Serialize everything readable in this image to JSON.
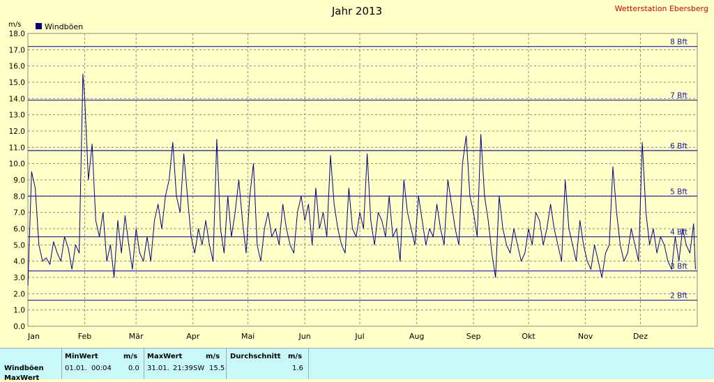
{
  "station": "Wetterstation Ebersberg",
  "chart_data": {
    "type": "line",
    "title": "Jahr 2013",
    "ylabel": "m/s",
    "ylim": [
      0,
      18
    ],
    "yticks": [
      "0.0",
      "1.0",
      "2.0",
      "3.0",
      "4.0",
      "5.0",
      "6.0",
      "7.0",
      "8.0",
      "9.0",
      "10.0",
      "11.0",
      "12.0",
      "13.0",
      "14.0",
      "15.0",
      "16.0",
      "17.0",
      "18.0"
    ],
    "grid": true,
    "legend": "top-left",
    "months": [
      "Jan",
      "Feb",
      "Mär",
      "Apr",
      "Mai",
      "Jun",
      "Jul",
      "Aug",
      "Sep",
      "Okt",
      "Nov",
      "Dez"
    ],
    "beaufort": [
      {
        "label": "2 Bft",
        "value": 1.6
      },
      {
        "label": "3 Bft",
        "value": 3.4
      },
      {
        "label": "4 Bft",
        "value": 5.5
      },
      {
        "label": "5 Bft",
        "value": 8.0
      },
      {
        "label": "6 Bft",
        "value": 10.8
      },
      {
        "label": "7 Bft",
        "value": 13.9
      },
      {
        "label": "8 Bft",
        "value": 17.2
      }
    ],
    "series": [
      {
        "name": "Windböen",
        "color": "#000080",
        "points": [
          [
            1,
            2.5
          ],
          [
            3,
            9.5
          ],
          [
            5,
            8.5
          ],
          [
            7,
            5
          ],
          [
            9,
            4
          ],
          [
            11,
            4.2
          ],
          [
            13,
            3.8
          ],
          [
            15,
            5.2
          ],
          [
            17,
            4.5
          ],
          [
            19,
            4
          ],
          [
            21,
            5.5
          ],
          [
            23,
            4.8
          ],
          [
            25,
            3.5
          ],
          [
            27,
            5
          ],
          [
            29,
            4.5
          ],
          [
            31,
            15.5
          ],
          [
            32,
            14
          ],
          [
            34,
            9
          ],
          [
            36,
            11.2
          ],
          [
            38,
            6.5
          ],
          [
            40,
            5.5
          ],
          [
            42,
            7
          ],
          [
            44,
            4
          ],
          [
            46,
            5
          ],
          [
            48,
            3
          ],
          [
            50,
            6.5
          ],
          [
            52,
            4.5
          ],
          [
            54,
            6.8
          ],
          [
            56,
            5
          ],
          [
            58,
            3.5
          ],
          [
            60,
            6
          ],
          [
            62,
            4.5
          ],
          [
            64,
            4
          ],
          [
            66,
            5.5
          ],
          [
            68,
            4
          ],
          [
            70,
            6.5
          ],
          [
            72,
            7.5
          ],
          [
            74,
            6
          ],
          [
            76,
            8
          ],
          [
            78,
            9
          ],
          [
            80,
            11.3
          ],
          [
            82,
            8
          ],
          [
            84,
            7
          ],
          [
            86,
            10.6
          ],
          [
            88,
            8
          ],
          [
            90,
            5.5
          ],
          [
            92,
            4.5
          ],
          [
            94,
            6
          ],
          [
            96,
            5
          ],
          [
            98,
            6.5
          ],
          [
            100,
            5
          ],
          [
            102,
            4
          ],
          [
            104,
            11.5
          ],
          [
            106,
            6
          ],
          [
            108,
            4.5
          ],
          [
            110,
            8
          ],
          [
            112,
            5.5
          ],
          [
            114,
            7
          ],
          [
            116,
            9
          ],
          [
            118,
            6.5
          ],
          [
            120,
            4.5
          ],
          [
            122,
            8
          ],
          [
            124,
            10
          ],
          [
            126,
            5
          ],
          [
            128,
            4
          ],
          [
            130,
            6
          ],
          [
            132,
            7
          ],
          [
            134,
            5.5
          ],
          [
            136,
            6
          ],
          [
            138,
            5
          ],
          [
            140,
            7.5
          ],
          [
            142,
            6
          ],
          [
            144,
            5
          ],
          [
            146,
            4.5
          ],
          [
            148,
            7
          ],
          [
            150,
            8
          ],
          [
            152,
            6.5
          ],
          [
            154,
            7.5
          ],
          [
            156,
            5
          ],
          [
            158,
            8.5
          ],
          [
            160,
            6
          ],
          [
            162,
            7
          ],
          [
            164,
            5.5
          ],
          [
            166,
            10.5
          ],
          [
            168,
            7.5
          ],
          [
            170,
            6
          ],
          [
            172,
            5
          ],
          [
            174,
            4.5
          ],
          [
            176,
            8.5
          ],
          [
            178,
            6
          ],
          [
            180,
            5.5
          ],
          [
            182,
            7
          ],
          [
            184,
            6
          ],
          [
            186,
            10.6
          ],
          [
            188,
            6.5
          ],
          [
            190,
            5
          ],
          [
            192,
            7
          ],
          [
            194,
            6.5
          ],
          [
            196,
            5.5
          ],
          [
            198,
            8
          ],
          [
            200,
            5.5
          ],
          [
            202,
            6
          ],
          [
            204,
            4
          ],
          [
            206,
            9
          ],
          [
            208,
            7
          ],
          [
            210,
            6
          ],
          [
            212,
            5
          ],
          [
            214,
            8
          ],
          [
            216,
            6.5
          ],
          [
            218,
            5
          ],
          [
            220,
            6
          ],
          [
            222,
            5.5
          ],
          [
            224,
            7.5
          ],
          [
            226,
            6
          ],
          [
            228,
            5
          ],
          [
            230,
            9
          ],
          [
            232,
            7.5
          ],
          [
            234,
            6
          ],
          [
            236,
            5
          ],
          [
            238,
            10
          ],
          [
            240,
            11.7
          ],
          [
            242,
            8
          ],
          [
            244,
            7
          ],
          [
            246,
            5.5
          ],
          [
            248,
            11.8
          ],
          [
            250,
            8
          ],
          [
            252,
            6.5
          ],
          [
            254,
            4.5
          ],
          [
            256,
            3
          ],
          [
            258,
            8
          ],
          [
            260,
            6
          ],
          [
            262,
            5
          ],
          [
            264,
            4.5
          ],
          [
            266,
            6
          ],
          [
            268,
            5
          ],
          [
            270,
            4
          ],
          [
            272,
            4.5
          ],
          [
            274,
            6
          ],
          [
            276,
            5
          ],
          [
            278,
            7
          ],
          [
            280,
            6.5
          ],
          [
            282,
            5
          ],
          [
            284,
            6
          ],
          [
            286,
            7.5
          ],
          [
            288,
            6
          ],
          [
            290,
            5
          ],
          [
            292,
            4
          ],
          [
            294,
            9
          ],
          [
            296,
            6
          ],
          [
            298,
            5
          ],
          [
            300,
            4
          ],
          [
            302,
            6.5
          ],
          [
            304,
            5
          ],
          [
            306,
            4
          ],
          [
            308,
            3.5
          ],
          [
            310,
            5
          ],
          [
            312,
            4
          ],
          [
            314,
            3
          ],
          [
            316,
            4.5
          ],
          [
            318,
            5
          ],
          [
            320,
            9.8
          ],
          [
            322,
            7
          ],
          [
            324,
            5
          ],
          [
            326,
            4
          ],
          [
            328,
            4.5
          ],
          [
            330,
            6
          ],
          [
            332,
            5
          ],
          [
            334,
            4
          ],
          [
            336,
            11.3
          ],
          [
            338,
            7
          ],
          [
            340,
            5
          ],
          [
            342,
            6
          ],
          [
            344,
            4.5
          ],
          [
            346,
            5.5
          ],
          [
            348,
            5
          ],
          [
            350,
            4
          ],
          [
            352,
            3.5
          ],
          [
            354,
            5.5
          ],
          [
            356,
            4
          ],
          [
            358,
            6
          ],
          [
            360,
            5
          ],
          [
            362,
            4.5
          ],
          [
            364,
            6.3
          ],
          [
            365,
            3.5
          ]
        ]
      }
    ]
  },
  "stats": {
    "row_label": "Windböen",
    "row2_label": "MaxWert",
    "min_header": "MinWert",
    "max_header": "MaxWert",
    "avg_header": "Durchschnitt",
    "unit": "m/s",
    "min_date": "01.01.",
    "min_time": "00:04",
    "min_value": "0.0",
    "max_date": "31.01.",
    "max_time": "21:39",
    "max_dir": "SW",
    "max_value": "15.5",
    "avg_value": "1.6"
  }
}
